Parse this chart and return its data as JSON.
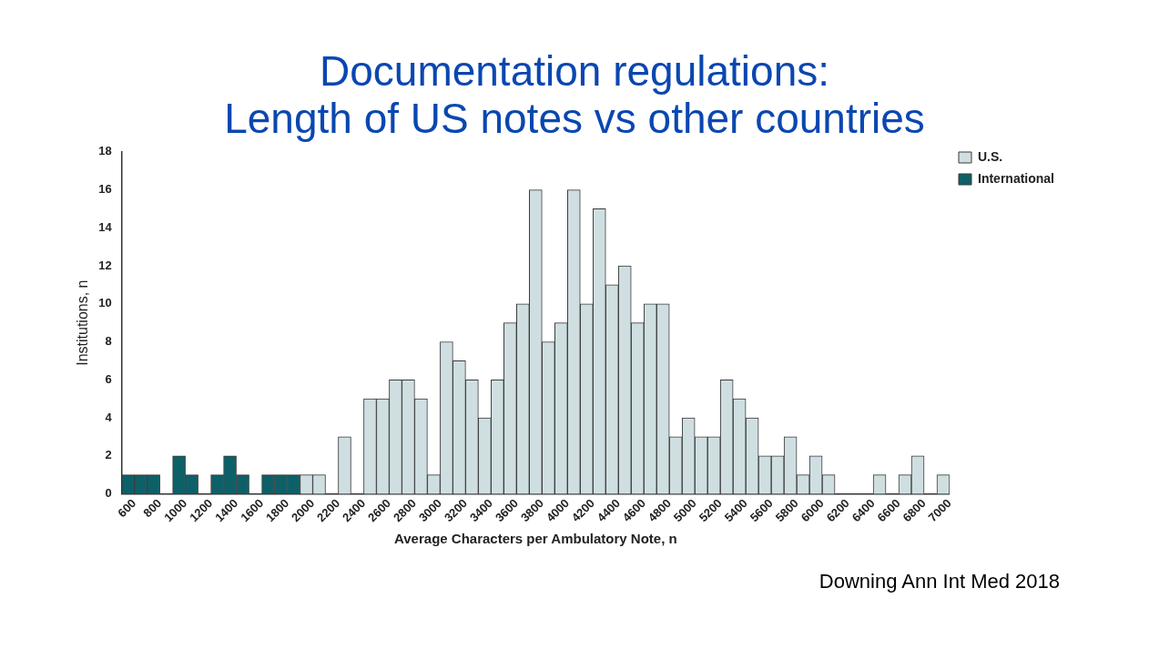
{
  "chart_data": {
    "type": "histogram",
    "title": "Documentation regulations:\nLength of US notes vs other countries",
    "xlabel": "Average Characters per Ambulatory Note, n",
    "ylabel": "Institutions, n",
    "annotations": [
      "Downing Ann Int Med 2018"
    ],
    "bins": [
      500,
      600,
      700,
      800,
      900,
      1000,
      1100,
      1200,
      1300,
      1400,
      1500,
      1600,
      1700,
      1800,
      1900,
      2000,
      2100,
      2200,
      2300,
      2400,
      2500,
      2600,
      2700,
      2800,
      2900,
      3000,
      3100,
      3200,
      3300,
      3400,
      3500,
      3600,
      3700,
      3800,
      3900,
      4000,
      4100,
      4200,
      4300,
      4400,
      4500,
      4600,
      4700,
      4800,
      4900,
      5000,
      5100,
      5200,
      5300,
      5400,
      5500,
      5600,
      5700,
      5800,
      5900,
      6000,
      6100,
      6200,
      6300,
      6400,
      6500,
      6600,
      6700,
      6800,
      6900,
      7000
    ],
    "series": [
      {
        "name": "U.S.",
        "color": "#cfdfe1",
        "values": [
          null,
          null,
          null,
          null,
          null,
          null,
          null,
          null,
          null,
          null,
          null,
          null,
          null,
          null,
          1,
          1,
          0,
          3,
          0,
          5,
          5,
          6,
          6,
          5,
          1,
          8,
          7,
          6,
          4,
          6,
          9,
          10,
          16,
          8,
          9,
          16,
          10,
          15,
          11,
          12,
          9,
          10,
          10,
          3,
          4,
          3,
          3,
          6,
          5,
          4,
          2,
          2,
          3,
          1,
          2,
          1,
          0,
          0,
          0,
          1,
          0,
          1,
          2,
          0,
          1
        ]
      },
      {
        "name": "International",
        "color": "#0e6068",
        "values": [
          1,
          1,
          1,
          0,
          2,
          1,
          0,
          1,
          2,
          1,
          0,
          1,
          1,
          1,
          null,
          null,
          null,
          null,
          null,
          null,
          null,
          null,
          null,
          null,
          null,
          null,
          null,
          null,
          null,
          null,
          null,
          null,
          null,
          null,
          null,
          null,
          null,
          null,
          null,
          null,
          null,
          null,
          null,
          null,
          null,
          null,
          null,
          null,
          null,
          null,
          null,
          null,
          null,
          null,
          null,
          null,
          null,
          null,
          null,
          null,
          null,
          null,
          null,
          null,
          null
        ]
      }
    ],
    "xlim": [
      500,
      7000
    ],
    "xticks": [
      600,
      800,
      1000,
      1200,
      1400,
      1600,
      1800,
      2000,
      2200,
      2400,
      2600,
      2800,
      3000,
      3200,
      3400,
      3600,
      3800,
      4000,
      4200,
      4400,
      4600,
      4800,
      5000,
      5200,
      5400,
      5600,
      5800,
      6000,
      6200,
      6400,
      6600,
      6800,
      7000
    ],
    "ylim": [
      0,
      18
    ],
    "yticks": [
      0,
      2,
      4,
      6,
      8,
      10,
      12,
      14,
      16,
      18
    ],
    "grid": false,
    "legend": "top right"
  }
}
